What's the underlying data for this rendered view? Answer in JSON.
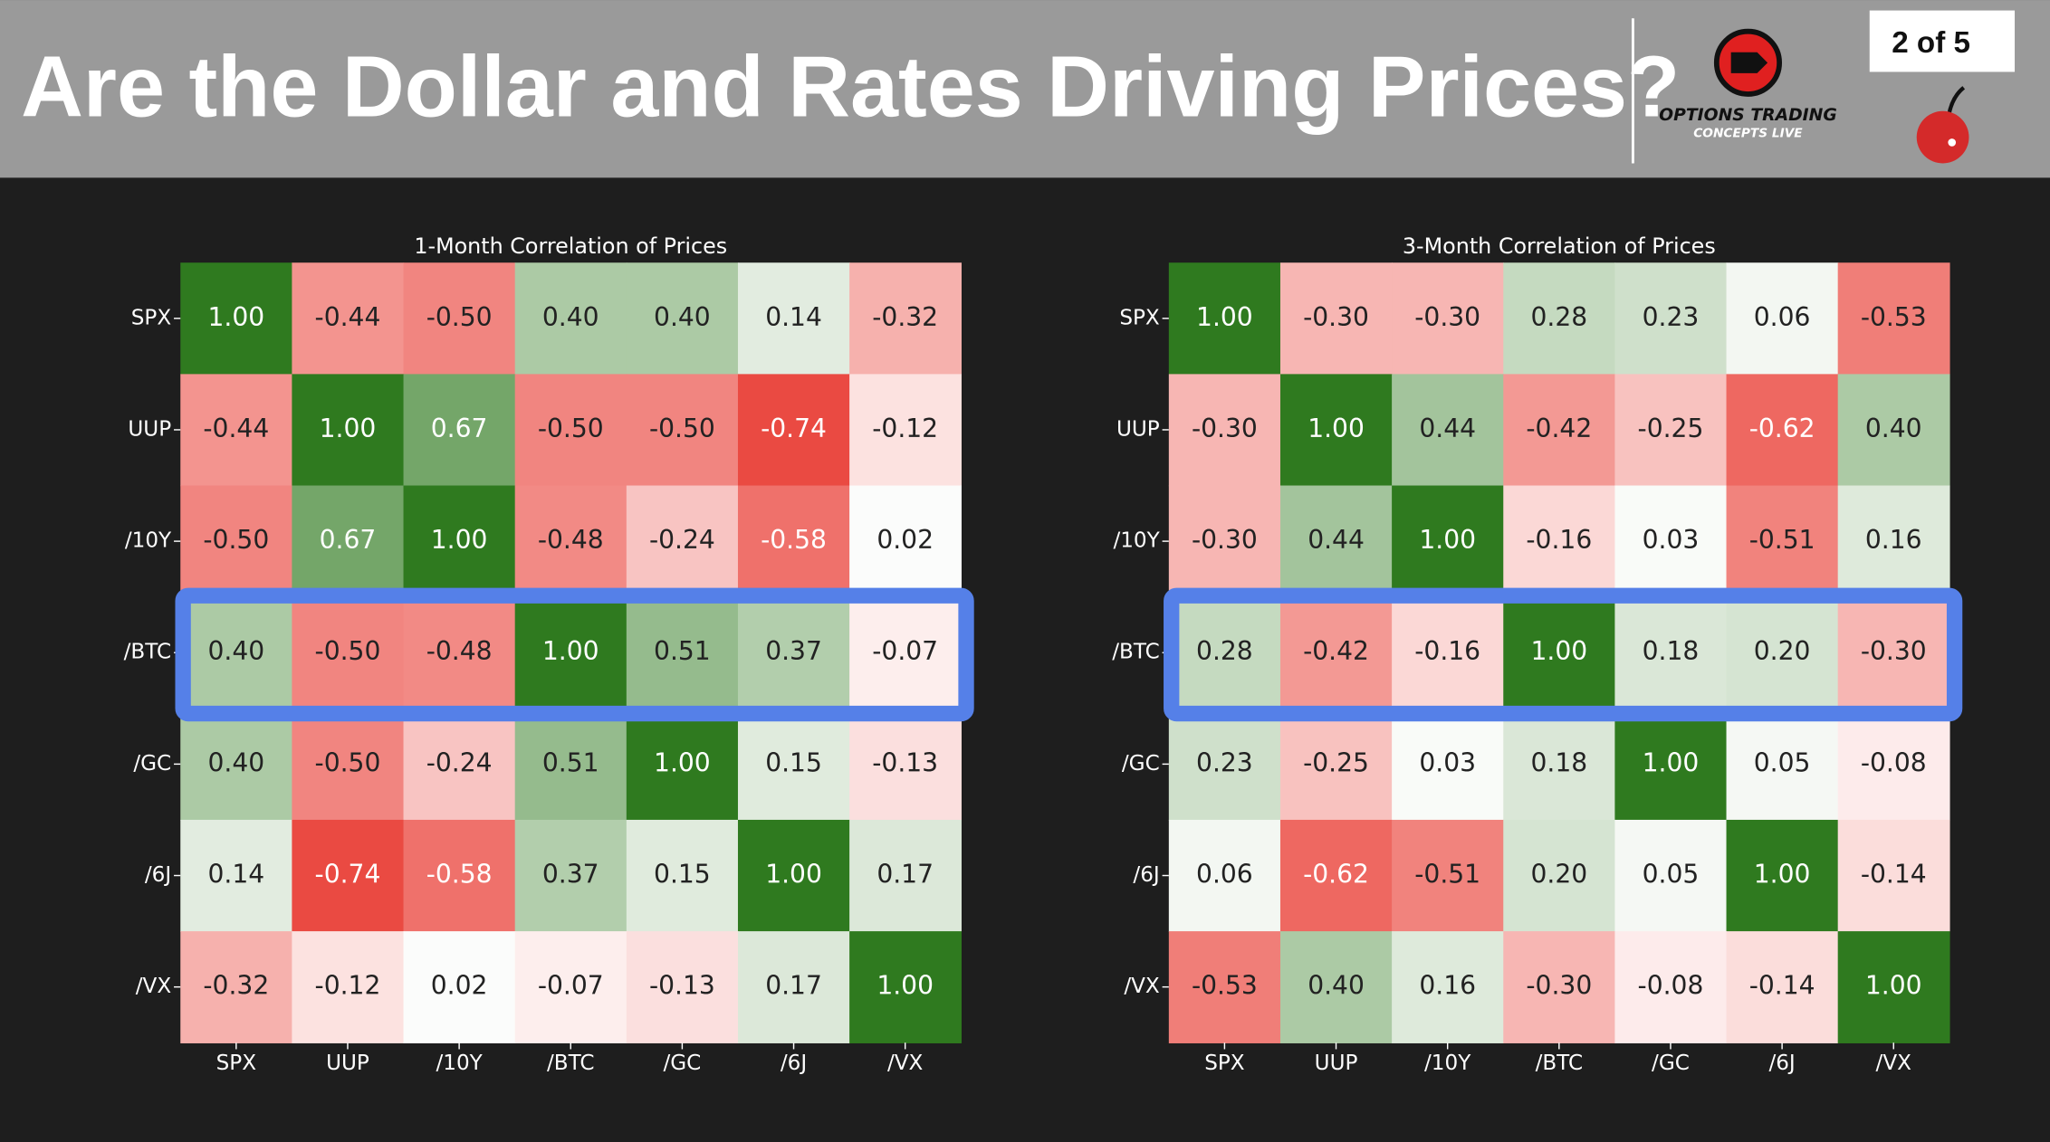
{
  "header": {
    "title": "Are the Dollar and Rates Driving Prices?",
    "page": "2 of 5",
    "logo_line1": "OPTIONS TRADING",
    "logo_line2": "CONCEPTS LIVE"
  },
  "chart_data": [
    {
      "type": "heatmap",
      "title": "1-Month Correlation of Prices",
      "x_categories": [
        "SPX",
        "UUP",
        "/10Y",
        "/BTC",
        "/GC",
        "/6J",
        "/VX"
      ],
      "y_categories": [
        "SPX",
        "UUP",
        "/10Y",
        "/BTC",
        "/GC",
        "/6J",
        "/VX"
      ],
      "values": [
        [
          1,
          -0.44,
          -0.5,
          0.4,
          0.4,
          0.14,
          -0.32
        ],
        [
          -0.44,
          1,
          0.67,
          -0.5,
          -0.5,
          -0.74,
          -0.12
        ],
        [
          -0.5,
          0.67,
          1,
          -0.48,
          -0.24,
          -0.58,
          0.02
        ],
        [
          0.4,
          -0.5,
          -0.48,
          1,
          0.51,
          0.37,
          -0.07
        ],
        [
          0.4,
          -0.5,
          -0.24,
          0.51,
          1,
          0.15,
          -0.13
        ],
        [
          0.14,
          -0.74,
          -0.58,
          0.37,
          0.15,
          1,
          0.17
        ],
        [
          -0.32,
          -0.12,
          0.02,
          -0.07,
          -0.13,
          0.17,
          1
        ]
      ],
      "value_labels": [
        [
          "1.00",
          "-0.44",
          "-0.50",
          "0.40",
          "0.40",
          "0.14",
          "-0.32"
        ],
        [
          "-0.44",
          "1.00",
          "0.67",
          "-0.50",
          "-0.50",
          "-0.74",
          "-0.12"
        ],
        [
          "-0.50",
          "0.67",
          "1.00",
          "-0.48",
          "-0.24",
          "-0.58",
          "0.02"
        ],
        [
          "0.40",
          "-0.50",
          "-0.48",
          "1.00",
          "0.51",
          "0.37",
          "-0.07"
        ],
        [
          "0.40",
          "-0.50",
          "-0.24",
          "0.51",
          "1.00",
          "0.15",
          "-0.13"
        ],
        [
          "0.14",
          "-0.74",
          "-0.58",
          "0.37",
          "0.15",
          "1.00",
          "0.17"
        ],
        [
          "-0.32",
          "-0.12",
          "0.02",
          "-0.07",
          "-0.13",
          "0.17",
          "1.00"
        ]
      ],
      "vlim": [
        -1,
        1
      ],
      "cmap": {
        "low": "#e30b00",
        "mid": "#ffffff",
        "high": "#2f7a1f"
      },
      "highlight_row": "/BTC",
      "highlight_color": "#5580e8"
    },
    {
      "type": "heatmap",
      "title": "3-Month Correlation of Prices",
      "x_categories": [
        "SPX",
        "UUP",
        "/10Y",
        "/BTC",
        "/GC",
        "/6J",
        "/VX"
      ],
      "y_categories": [
        "SPX",
        "UUP",
        "/10Y",
        "/BTC",
        "/GC",
        "/6J",
        "/VX"
      ],
      "values": [
        [
          1,
          -0.3,
          -0.3,
          0.28,
          0.23,
          0.06,
          -0.53
        ],
        [
          -0.3,
          1,
          0.44,
          -0.42,
          -0.25,
          -0.62,
          0.4
        ],
        [
          -0.3,
          0.44,
          1,
          -0.16,
          0.03,
          -0.51,
          0.16
        ],
        [
          0.28,
          -0.42,
          -0.16,
          1,
          0.18,
          0.2,
          -0.3
        ],
        [
          0.23,
          -0.25,
          0.03,
          0.18,
          1,
          0.05,
          -0.08
        ],
        [
          0.06,
          -0.62,
          -0.51,
          0.2,
          0.05,
          1,
          -0.14
        ],
        [
          -0.53,
          0.4,
          0.16,
          -0.3,
          -0.08,
          -0.14,
          1
        ]
      ],
      "value_labels": [
        [
          "1.00",
          "-0.30",
          "-0.30",
          "0.28",
          "0.23",
          "0.06",
          "-0.53"
        ],
        [
          "-0.30",
          "1.00",
          "0.44",
          "-0.42",
          "-0.25",
          "-0.62",
          "0.40"
        ],
        [
          "-0.30",
          "0.44",
          "1.00",
          "-0.16",
          "0.03",
          "-0.51",
          "0.16"
        ],
        [
          "0.28",
          "-0.42",
          "-0.16",
          "1.00",
          "0.18",
          "0.20",
          "-0.30"
        ],
        [
          "0.23",
          "-0.25",
          "0.03",
          "0.18",
          "1.00",
          "0.05",
          "-0.08"
        ],
        [
          "0.06",
          "-0.62",
          "-0.51",
          "0.20",
          "0.05",
          "1.00",
          "-0.14"
        ],
        [
          "-0.53",
          "0.40",
          "0.16",
          "-0.30",
          "-0.08",
          "-0.14",
          "1.00"
        ]
      ],
      "vlim": [
        -1,
        1
      ],
      "cmap": {
        "low": "#e30b00",
        "mid": "#ffffff",
        "high": "#2f7a1f"
      },
      "highlight_row": "/BTC",
      "highlight_color": "#5580e8"
    }
  ]
}
